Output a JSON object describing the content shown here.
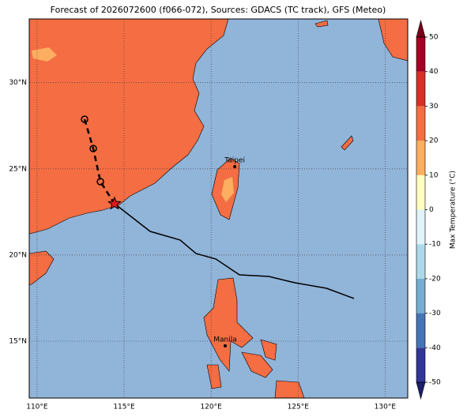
{
  "title": "Forecast of 2026072600 (f066-072), Sources: GDACS (TC track), GFS (Meteo)",
  "map": {
    "lonlim": [
      109.55,
      131.3
    ],
    "latlim": [
      11.7,
      33.7
    ],
    "lon_ticks": [
      {
        "value": 110,
        "label": "110°E"
      },
      {
        "value": 115,
        "label": "115°E"
      },
      {
        "value": 120,
        "label": "120°E"
      },
      {
        "value": 125,
        "label": "125°E"
      },
      {
        "value": 130,
        "label": "130°E"
      }
    ],
    "lat_ticks": [
      {
        "value": 15,
        "label": "15°N"
      },
      {
        "value": 20,
        "label": "20°N"
      },
      {
        "value": 25,
        "label": "25°N"
      },
      {
        "value": 30,
        "label": "30°N"
      }
    ],
    "grid": true,
    "land_color": "#f46d43",
    "warm_patch_color": "#fdae61",
    "ocean_color": "#91b4d9"
  },
  "track": {
    "observed": [
      [
        114.45,
        22.98
      ],
      [
        116.5,
        21.37
      ],
      [
        118.22,
        20.87
      ],
      [
        119.13,
        20.09
      ],
      [
        120.27,
        19.77
      ],
      [
        121.63,
        18.85
      ],
      [
        123.31,
        18.76
      ],
      [
        124.81,
        18.39
      ],
      [
        126.63,
        18.07
      ],
      [
        128.21,
        17.48
      ]
    ],
    "forecast": [
      [
        112.73,
        27.88
      ],
      [
        113.23,
        26.18
      ],
      [
        113.64,
        24.26
      ],
      [
        114.45,
        22.98
      ]
    ],
    "current": [
      114.45,
      22.98
    ]
  },
  "cities": [
    {
      "label": "Taipei",
      "lon": 121.36,
      "lat": 25.13
    },
    {
      "label": "Manila",
      "lon": 120.81,
      "lat": 14.73
    }
  ],
  "colorbar": {
    "label": "Max Temperature (°C)",
    "lim": [
      -50,
      50
    ],
    "ticks": [
      -50,
      -40,
      -30,
      -20,
      -10,
      0,
      10,
      20,
      30,
      40,
      50
    ],
    "colors": [
      "#313695",
      "#4575b4",
      "#74add1",
      "#abd9e9",
      "#e0f3f8",
      "#ffffbf",
      "#fdae61",
      "#f46d43",
      "#d73027",
      "#a50026"
    ],
    "under_color": "#1c1f70",
    "over_color": "#7a0019"
  }
}
